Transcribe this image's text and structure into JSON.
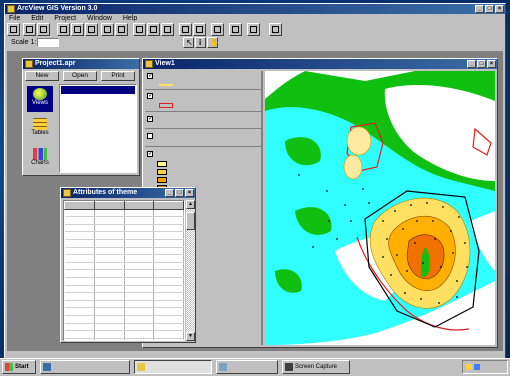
{
  "app": {
    "title": "ArcView GIS Version 3.0",
    "menu": [
      "File",
      "Edit",
      "Project",
      "Window",
      "Help"
    ],
    "scale_label": "Scale 1:",
    "scale_value": "",
    "coord_value": ""
  },
  "project_window": {
    "title": "Project1.apr",
    "buttons": {
      "new": "New",
      "open": "Open",
      "print": "Print"
    },
    "doc_types": [
      "Views",
      "Tables",
      "Charts"
    ],
    "doc_list": [
      "",
      "",
      "",
      "",
      "",
      ""
    ]
  },
  "view_window": {
    "title": "View1",
    "legend": [
      {
        "label": "",
        "checked": true,
        "symbol": "line-yellow"
      },
      {
        "label": "",
        "checked": true,
        "symbol": "poly-red"
      },
      {
        "label": "",
        "checked": true,
        "symbol": "none"
      },
      {
        "label": "",
        "checked": false,
        "symbol": "none"
      },
      {
        "label": "",
        "checked": true,
        "symbol": "classes"
      }
    ],
    "class_labels": [
      "",
      "",
      "",
      "",
      ""
    ],
    "legend_text_behind": [
      "",
      "",
      "",
      "",
      ""
    ],
    "class_colors": [
      "#ffff80",
      "#ffd040",
      "#ff9c00",
      "#e07000",
      "#c05000"
    ],
    "colors": {
      "water": "#30ffff",
      "land": "#10c010",
      "contour_outer": "#ffe060",
      "contour_mid": "#ffb000",
      "contour_inner": "#f07000",
      "boundary": "#e02020",
      "polygon": "#000000"
    }
  },
  "attributes_window": {
    "title": "Attributes of theme",
    "columns": [
      "",
      "",
      "",
      ""
    ],
    "rows": [
      [
        "",
        "",
        "",
        ""
      ],
      [
        "",
        "",
        "",
        ""
      ],
      [
        "",
        "",
        "",
        ""
      ],
      [
        "",
        "",
        "",
        ""
      ],
      [
        "",
        "",
        "",
        ""
      ],
      [
        "",
        "",
        "",
        ""
      ],
      [
        "",
        "",
        "",
        ""
      ],
      [
        "",
        "",
        "",
        ""
      ],
      [
        "",
        "",
        "",
        ""
      ],
      [
        "",
        "",
        "",
        ""
      ],
      [
        "",
        "",
        "",
        ""
      ],
      [
        "",
        "",
        "",
        ""
      ],
      [
        "",
        "",
        "",
        ""
      ],
      [
        "",
        "",
        "",
        ""
      ],
      [
        "",
        "",
        "",
        ""
      ],
      [
        "",
        "",
        "",
        ""
      ],
      [
        "",
        "",
        "",
        ""
      ],
      [
        "",
        "",
        "",
        ""
      ],
      [
        "",
        "",
        "",
        ""
      ],
      [
        "",
        "",
        "",
        ""
      ]
    ]
  },
  "taskbar": {
    "start": "Start",
    "tasks": [
      {
        "label": "",
        "active": false
      },
      {
        "label": "",
        "active": true
      },
      {
        "label": "",
        "active": false
      },
      {
        "label": "Screen Capture",
        "active": false
      }
    ],
    "clock": ""
  }
}
